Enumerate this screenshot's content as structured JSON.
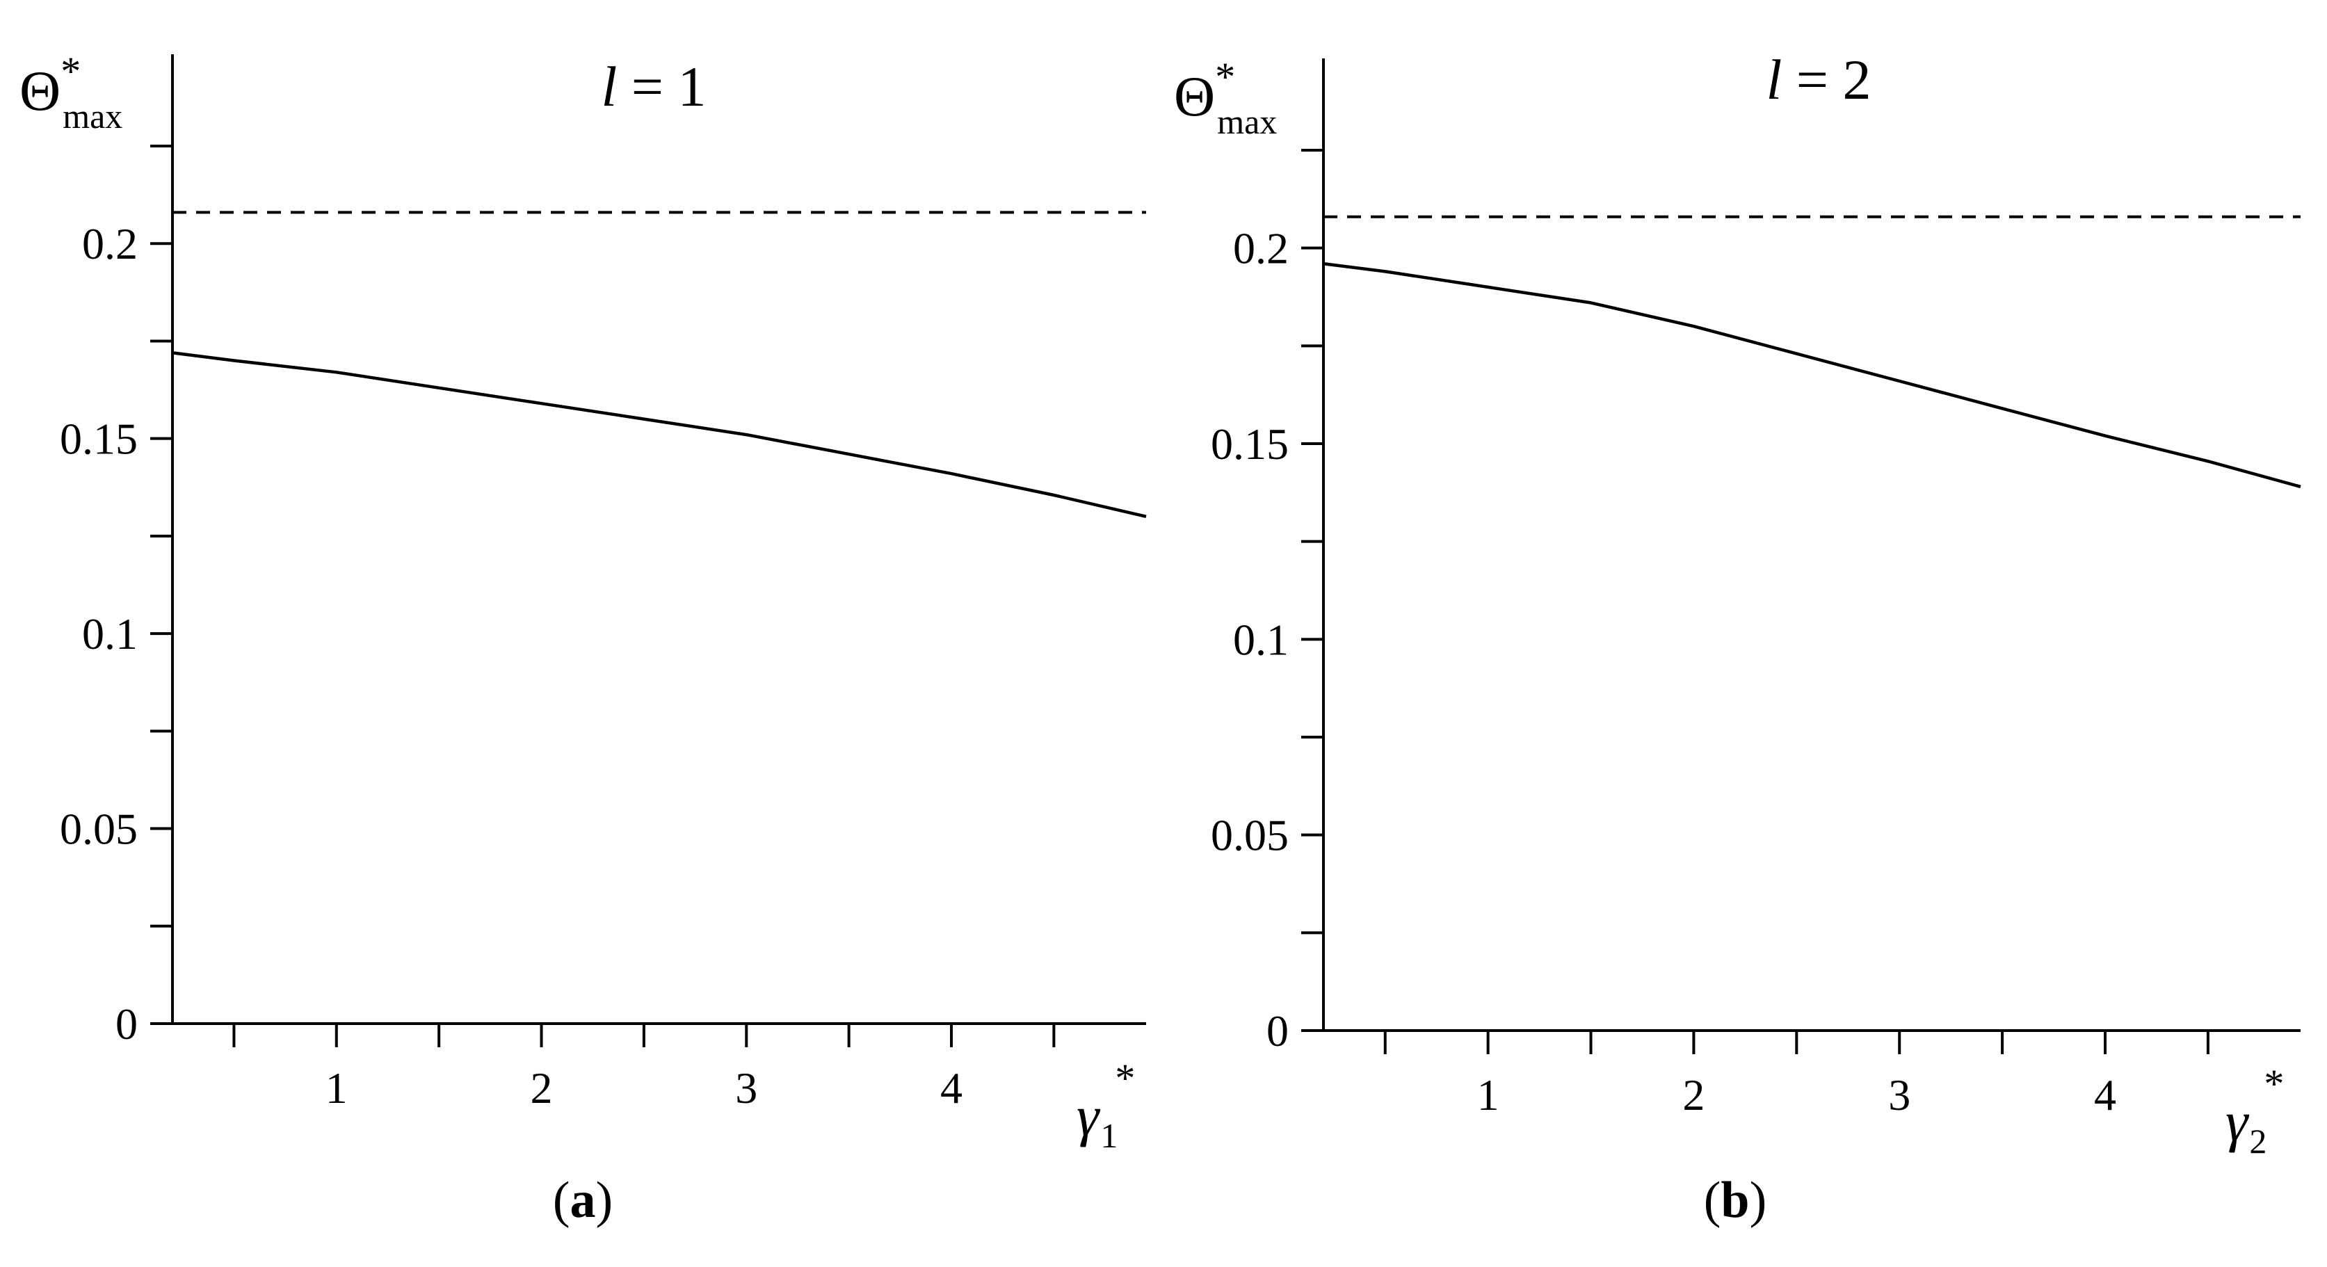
{
  "chart_data": [
    {
      "type": "line",
      "panel_label": "a",
      "title_var": "l",
      "title_eq": " = ",
      "title_val": "1",
      "ylabel": {
        "symbol": "Θ",
        "star": "*",
        "sub": "max"
      },
      "xlabel": {
        "symbol": "γ",
        "star": "*",
        "sub": "1"
      },
      "xlim": [
        0.2,
        4.95
      ],
      "ylim": [
        0,
        0.25
      ],
      "xticks": [
        1,
        2,
        3,
        4
      ],
      "xticks_minor": [
        0.5,
        1.5,
        2.5,
        3.5,
        4.5
      ],
      "yticks": [
        0,
        0.05,
        0.1,
        0.15,
        0.2
      ],
      "ytick_labels": [
        "0",
        "0.05",
        "0.1",
        "0.15",
        "0.2"
      ],
      "yticks_minor": [
        0.025,
        0.075,
        0.125,
        0.175,
        0.225
      ],
      "grid": false,
      "series": [
        {
          "style": "solid",
          "x": [
            0.2,
            0.5,
            1.0,
            1.5,
            2.0,
            2.5,
            3.0,
            3.5,
            4.0,
            4.5,
            4.95
          ],
          "y": [
            0.172,
            0.17,
            0.167,
            0.163,
            0.159,
            0.155,
            0.151,
            0.146,
            0.141,
            0.1355,
            0.13
          ]
        },
        {
          "style": "dashed",
          "x": [
            0.2,
            4.95
          ],
          "y": [
            0.208,
            0.208
          ]
        }
      ]
    },
    {
      "type": "line",
      "panel_label": "b",
      "title_var": "l",
      "title_eq": " = ",
      "title_val": "2",
      "ylabel": {
        "symbol": "Θ",
        "star": "*",
        "sub": "max"
      },
      "xlabel": {
        "symbol": "γ",
        "star": "*",
        "sub": "2"
      },
      "xlim": [
        0.2,
        4.95
      ],
      "ylim": [
        0,
        0.25
      ],
      "xticks": [
        1,
        2,
        3,
        4
      ],
      "xticks_minor": [
        0.5,
        1.5,
        2.5,
        3.5,
        4.5
      ],
      "yticks": [
        0,
        0.05,
        0.1,
        0.15,
        0.2
      ],
      "ytick_labels": [
        "0",
        "0.05",
        "0.1",
        "0.15",
        "0.2"
      ],
      "yticks_minor": [
        0.025,
        0.075,
        0.125,
        0.175,
        0.225
      ],
      "grid": false,
      "series": [
        {
          "style": "solid",
          "x": [
            0.2,
            0.5,
            1.0,
            1.5,
            2.0,
            2.5,
            3.0,
            3.5,
            4.0,
            4.5,
            4.95
          ],
          "y": [
            0.196,
            0.194,
            0.19,
            0.186,
            0.18,
            0.173,
            0.166,
            0.159,
            0.152,
            0.1455,
            0.139
          ]
        },
        {
          "style": "dashed",
          "x": [
            0.2,
            4.95
          ],
          "y": [
            0.208,
            0.208
          ]
        }
      ]
    }
  ]
}
